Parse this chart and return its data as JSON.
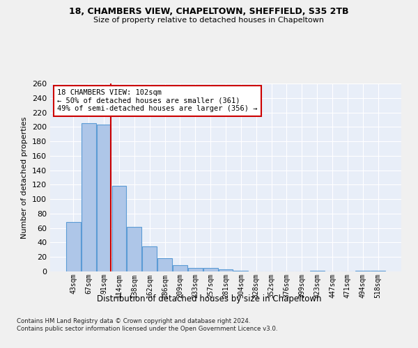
{
  "title1": "18, CHAMBERS VIEW, CHAPELTOWN, SHEFFIELD, S35 2TB",
  "title2": "Size of property relative to detached houses in Chapeltown",
  "xlabel": "Distribution of detached houses by size in Chapeltown",
  "ylabel": "Number of detached properties",
  "footer": "Contains HM Land Registry data © Crown copyright and database right 2024.\nContains public sector information licensed under the Open Government Licence v3.0.",
  "bar_labels": [
    "43sqm",
    "67sqm",
    "91sqm",
    "114sqm",
    "138sqm",
    "162sqm",
    "186sqm",
    "209sqm",
    "233sqm",
    "257sqm",
    "281sqm",
    "304sqm",
    "328sqm",
    "352sqm",
    "376sqm",
    "399sqm",
    "423sqm",
    "447sqm",
    "471sqm",
    "494sqm",
    "518sqm"
  ],
  "bar_values": [
    68,
    205,
    203,
    118,
    62,
    35,
    18,
    9,
    5,
    5,
    3,
    1,
    0,
    0,
    0,
    0,
    1,
    0,
    0,
    1,
    1
  ],
  "bar_color": "#aec6e8",
  "bar_edge_color": "#5b9bd5",
  "background_color": "#e8eef8",
  "grid_color": "#ffffff",
  "vline_color": "#cc0000",
  "annotation_text": "18 CHAMBERS VIEW: 102sqm\n← 50% of detached houses are smaller (361)\n49% of semi-detached houses are larger (356) →",
  "annotation_box_color": "#ffffff",
  "annotation_box_edge": "#cc0000",
  "ylim": [
    0,
    260
  ],
  "yticks": [
    0,
    20,
    40,
    60,
    80,
    100,
    120,
    140,
    160,
    180,
    200,
    220,
    240,
    260
  ],
  "fig_bg": "#f0f0f0"
}
